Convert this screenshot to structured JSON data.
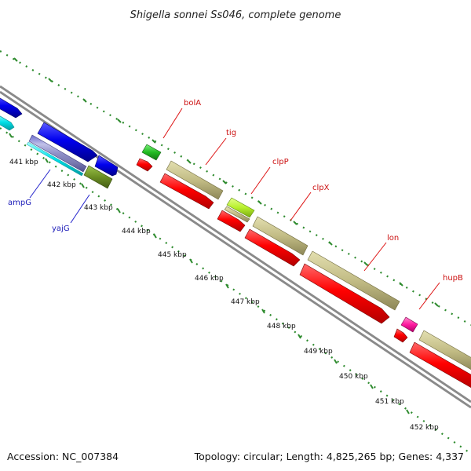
{
  "map": {
    "title": "Shigella sonnei Ss046, complete genome",
    "accession_text": "Accession: NC_007384",
    "summary_text": "Topology: circular; Length: 4,825,265 bp; Genes: 4,337"
  },
  "ruler": {
    "unit": "kbp",
    "labels": [
      "441 kbp",
      "442 kbp",
      "443 kbp",
      "444 kbp",
      "445 kbp",
      "446 kbp",
      "447 kbp",
      "448 kbp",
      "449 kbp",
      "450 kbp",
      "451 kbp",
      "452 kbp"
    ]
  },
  "genes": [
    {
      "name": "ampG",
      "color": "#1a1ab8"
    },
    {
      "name": "yajG",
      "color": "#1a1ab8"
    },
    {
      "name": "bolA",
      "color": "#cc1111"
    },
    {
      "name": "tig",
      "color": "#cc1111"
    },
    {
      "name": "clpP",
      "color": "#cc1111"
    },
    {
      "name": "clpX",
      "color": "#cc1111"
    },
    {
      "name": "lon",
      "color": "#cc1111"
    },
    {
      "name": "hupB",
      "color": "#cc1111"
    }
  ],
  "colors": {
    "backbone": "#8a8a8a",
    "tick_marks": "#2e8b2e",
    "cds_forward": "#ff0000",
    "cds_reverse": "#0000ff",
    "feature_tan": "#c2bc85",
    "feature_olive": "#6b8e23",
    "feature_green": "#33cc33",
    "feature_lime": "#b7f02b",
    "feature_magenta": "#ff1aa0",
    "feature_cyan": "#00e0e8"
  }
}
